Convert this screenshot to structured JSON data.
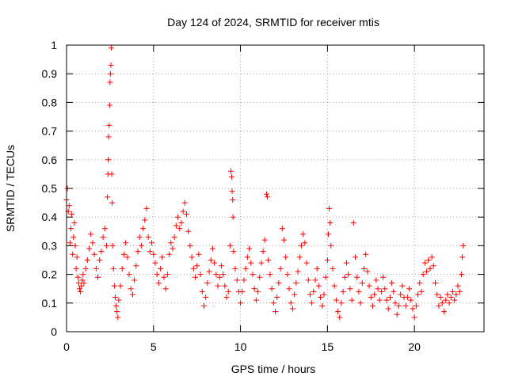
{
  "chart_data": {
    "type": "scatter",
    "title": "Day 124 of 2024, SRMTID for receiver mtis",
    "xlabel": "GPS time / hours",
    "ylabel": "SRMTID / TECUs",
    "xlim": [
      0,
      24
    ],
    "ylim": [
      0,
      1
    ],
    "x_ticks": [
      0,
      5,
      10,
      15,
      20
    ],
    "x_tick_labels": [
      "0",
      "5",
      "10",
      "15",
      "20"
    ],
    "y_ticks": [
      0,
      0.1,
      0.2,
      0.3,
      0.4,
      0.5,
      0.6,
      0.7,
      0.8,
      0.9,
      1
    ],
    "y_tick_labels": [
      "0",
      "0.1",
      "0.2",
      "0.3",
      "0.4",
      "0.5",
      "0.6",
      "0.7",
      "0.8",
      "0.9",
      "1"
    ],
    "grid": true,
    "marker": "+",
    "color": "#ff0000",
    "series": [
      {
        "name": "SRMTID",
        "points": [
          [
            0.0,
            0.46
          ],
          [
            0.05,
            0.5
          ],
          [
            0.1,
            0.42
          ],
          [
            0.15,
            0.44
          ],
          [
            0.2,
            0.31
          ],
          [
            0.25,
            0.36
          ],
          [
            0.3,
            0.41
          ],
          [
            0.35,
            0.27
          ],
          [
            0.4,
            0.33
          ],
          [
            0.45,
            0.38
          ],
          [
            0.5,
            0.3
          ],
          [
            0.55,
            0.22
          ],
          [
            0.6,
            0.26
          ],
          [
            0.65,
            0.19
          ],
          [
            0.7,
            0.17
          ],
          [
            0.75,
            0.15
          ],
          [
            0.8,
            0.14
          ],
          [
            0.85,
            0.16
          ],
          [
            0.9,
            0.18
          ],
          [
            0.95,
            0.2
          ],
          [
            1.0,
            0.17
          ],
          [
            1.1,
            0.22
          ],
          [
            1.2,
            0.25
          ],
          [
            1.3,
            0.29
          ],
          [
            1.4,
            0.34
          ],
          [
            1.5,
            0.31
          ],
          [
            1.6,
            0.27
          ],
          [
            1.7,
            0.22
          ],
          [
            1.8,
            0.19
          ],
          [
            1.9,
            0.25
          ],
          [
            2.0,
            0.28
          ],
          [
            2.1,
            0.33
          ],
          [
            2.2,
            0.36
          ],
          [
            2.3,
            0.3
          ],
          [
            2.35,
            0.47
          ],
          [
            2.38,
            0.55
          ],
          [
            2.4,
            0.6
          ],
          [
            2.42,
            0.68
          ],
          [
            2.45,
            0.72
          ],
          [
            2.48,
            0.79
          ],
          [
            2.5,
            0.87
          ],
          [
            2.52,
            0.9
          ],
          [
            2.55,
            0.93
          ],
          [
            2.57,
            0.99
          ],
          [
            2.6,
            0.55
          ],
          [
            2.62,
            0.45
          ],
          [
            2.65,
            0.3
          ],
          [
            2.7,
            0.22
          ],
          [
            2.75,
            0.16
          ],
          [
            2.8,
            0.12
          ],
          [
            2.85,
            0.09
          ],
          [
            2.9,
            0.07
          ],
          [
            2.95,
            0.05
          ],
          [
            3.0,
            0.11
          ],
          [
            3.1,
            0.16
          ],
          [
            3.2,
            0.22
          ],
          [
            3.3,
            0.27
          ],
          [
            3.4,
            0.31
          ],
          [
            3.5,
            0.26
          ],
          [
            3.6,
            0.2
          ],
          [
            3.7,
            0.15
          ],
          [
            3.8,
            0.13
          ],
          [
            3.9,
            0.18
          ],
          [
            4.0,
            0.23
          ],
          [
            4.1,
            0.28
          ],
          [
            4.2,
            0.33
          ],
          [
            4.3,
            0.3
          ],
          [
            4.4,
            0.36
          ],
          [
            4.5,
            0.39
          ],
          [
            4.6,
            0.43
          ],
          [
            4.7,
            0.33
          ],
          [
            4.8,
            0.28
          ],
          [
            4.9,
            0.31
          ],
          [
            5.0,
            0.27
          ],
          [
            5.1,
            0.24
          ],
          [
            5.2,
            0.2
          ],
          [
            5.3,
            0.17
          ],
          [
            5.4,
            0.22
          ],
          [
            5.5,
            0.26
          ],
          [
            5.6,
            0.19
          ],
          [
            5.7,
            0.15
          ],
          [
            5.8,
            0.2
          ],
          [
            5.9,
            0.27
          ],
          [
            6.0,
            0.31
          ],
          [
            6.1,
            0.29
          ],
          [
            6.2,
            0.33
          ],
          [
            6.3,
            0.37
          ],
          [
            6.4,
            0.4
          ],
          [
            6.5,
            0.36
          ],
          [
            6.6,
            0.38
          ],
          [
            6.7,
            0.42
          ],
          [
            6.8,
            0.45
          ],
          [
            6.9,
            0.41
          ],
          [
            7.0,
            0.35
          ],
          [
            7.1,
            0.3
          ],
          [
            7.2,
            0.26
          ],
          [
            7.3,
            0.22
          ],
          [
            7.4,
            0.19
          ],
          [
            7.5,
            0.23
          ],
          [
            7.6,
            0.27
          ],
          [
            7.7,
            0.2
          ],
          [
            7.8,
            0.14
          ],
          [
            7.9,
            0.09
          ],
          [
            8.0,
            0.12
          ],
          [
            8.1,
            0.17
          ],
          [
            8.2,
            0.21
          ],
          [
            8.3,
            0.25
          ],
          [
            8.4,
            0.29
          ],
          [
            8.5,
            0.24
          ],
          [
            8.6,
            0.2
          ],
          [
            8.7,
            0.16
          ],
          [
            8.8,
            0.19
          ],
          [
            8.9,
            0.23
          ],
          [
            9.0,
            0.2
          ],
          [
            9.1,
            0.16
          ],
          [
            9.2,
            0.12
          ],
          [
            9.3,
            0.14
          ],
          [
            9.4,
            0.3
          ],
          [
            9.45,
            0.56
          ],
          [
            9.5,
            0.54
          ],
          [
            9.52,
            0.49
          ],
          [
            9.55,
            0.46
          ],
          [
            9.57,
            0.4
          ],
          [
            9.6,
            0.28
          ],
          [
            9.7,
            0.22
          ],
          [
            9.8,
            0.18
          ],
          [
            9.9,
            0.14
          ],
          [
            10.0,
            0.1
          ],
          [
            10.1,
            0.14
          ],
          [
            10.2,
            0.18
          ],
          [
            10.3,
            0.22
          ],
          [
            10.4,
            0.26
          ],
          [
            10.5,
            0.29
          ],
          [
            10.6,
            0.24
          ],
          [
            10.7,
            0.2
          ],
          [
            10.8,
            0.15
          ],
          [
            10.9,
            0.11
          ],
          [
            11.0,
            0.14
          ],
          [
            11.1,
            0.19
          ],
          [
            11.2,
            0.24
          ],
          [
            11.3,
            0.28
          ],
          [
            11.4,
            0.32
          ],
          [
            11.5,
            0.48
          ],
          [
            11.55,
            0.47
          ],
          [
            11.6,
            0.25
          ],
          [
            11.7,
            0.2
          ],
          [
            11.8,
            0.15
          ],
          [
            11.9,
            0.1
          ],
          [
            12.0,
            0.07
          ],
          [
            12.1,
            0.12
          ],
          [
            12.2,
            0.17
          ],
          [
            12.3,
            0.22
          ],
          [
            12.4,
            0.36
          ],
          [
            12.5,
            0.32
          ],
          [
            12.6,
            0.26
          ],
          [
            12.7,
            0.2
          ],
          [
            12.8,
            0.15
          ],
          [
            12.9,
            0.1
          ],
          [
            13.0,
            0.08
          ],
          [
            13.1,
            0.13
          ],
          [
            13.2,
            0.17
          ],
          [
            13.3,
            0.21
          ],
          [
            13.4,
            0.26
          ],
          [
            13.5,
            0.3
          ],
          [
            13.6,
            0.34
          ],
          [
            13.7,
            0.31
          ],
          [
            13.8,
            0.24
          ],
          [
            13.9,
            0.18
          ],
          [
            14.0,
            0.13
          ],
          [
            14.1,
            0.1
          ],
          [
            14.2,
            0.14
          ],
          [
            14.3,
            0.18
          ],
          [
            14.4,
            0.22
          ],
          [
            14.5,
            0.16
          ],
          [
            14.6,
            0.12
          ],
          [
            14.7,
            0.09
          ],
          [
            14.8,
            0.13
          ],
          [
            14.9,
            0.19
          ],
          [
            15.0,
            0.25
          ],
          [
            15.05,
            0.34
          ],
          [
            15.1,
            0.43
          ],
          [
            15.15,
            0.38
          ],
          [
            15.2,
            0.3
          ],
          [
            15.3,
            0.22
          ],
          [
            15.4,
            0.16
          ],
          [
            15.5,
            0.11
          ],
          [
            15.6,
            0.07
          ],
          [
            15.7,
            0.05
          ],
          [
            15.8,
            0.1
          ],
          [
            15.9,
            0.14
          ],
          [
            16.0,
            0.19
          ],
          [
            16.1,
            0.24
          ],
          [
            16.2,
            0.2
          ],
          [
            16.3,
            0.15
          ],
          [
            16.4,
            0.11
          ],
          [
            16.5,
            0.38
          ],
          [
            16.6,
            0.26
          ],
          [
            16.7,
            0.19
          ],
          [
            16.8,
            0.14
          ],
          [
            16.9,
            0.1
          ],
          [
            17.0,
            0.17
          ],
          [
            17.1,
            0.22
          ],
          [
            17.2,
            0.27
          ],
          [
            17.3,
            0.21
          ],
          [
            17.4,
            0.16
          ],
          [
            17.5,
            0.12
          ],
          [
            17.6,
            0.09
          ],
          [
            17.7,
            0.13
          ],
          [
            17.8,
            0.18
          ],
          [
            17.9,
            0.15
          ],
          [
            18.0,
            0.11
          ],
          [
            18.1,
            0.14
          ],
          [
            18.2,
            0.19
          ],
          [
            18.3,
            0.15
          ],
          [
            18.4,
            0.11
          ],
          [
            18.5,
            0.08
          ],
          [
            18.6,
            0.12
          ],
          [
            18.7,
            0.17
          ],
          [
            18.8,
            0.14
          ],
          [
            18.9,
            0.1
          ],
          [
            19.0,
            0.06
          ],
          [
            19.1,
            0.09
          ],
          [
            19.2,
            0.13
          ],
          [
            19.3,
            0.16
          ],
          [
            19.4,
            0.12
          ],
          [
            19.5,
            0.09
          ],
          [
            19.6,
            0.12
          ],
          [
            19.7,
            0.15
          ],
          [
            19.8,
            0.11
          ],
          [
            19.9,
            0.08
          ],
          [
            20.0,
            0.05
          ],
          [
            20.1,
            0.09
          ],
          [
            20.2,
            0.13
          ],
          [
            20.3,
            0.17
          ],
          [
            20.4,
            0.14
          ],
          [
            20.5,
            0.2
          ],
          [
            20.6,
            0.24
          ],
          [
            20.7,
            0.21
          ],
          [
            20.8,
            0.25
          ],
          [
            20.9,
            0.22
          ],
          [
            21.0,
            0.26
          ],
          [
            21.1,
            0.23
          ],
          [
            21.2,
            0.17
          ],
          [
            21.3,
            0.13
          ],
          [
            21.4,
            0.09
          ],
          [
            21.5,
            0.12
          ],
          [
            21.6,
            0.1
          ],
          [
            21.7,
            0.07
          ],
          [
            21.8,
            0.11
          ],
          [
            21.9,
            0.13
          ],
          [
            22.0,
            0.1
          ],
          [
            22.1,
            0.12
          ],
          [
            22.2,
            0.14
          ],
          [
            22.3,
            0.11
          ],
          [
            22.4,
            0.13
          ],
          [
            22.5,
            0.16
          ],
          [
            22.6,
            0.14
          ],
          [
            22.7,
            0.2
          ],
          [
            22.75,
            0.26
          ],
          [
            22.8,
            0.3
          ]
        ]
      }
    ]
  }
}
